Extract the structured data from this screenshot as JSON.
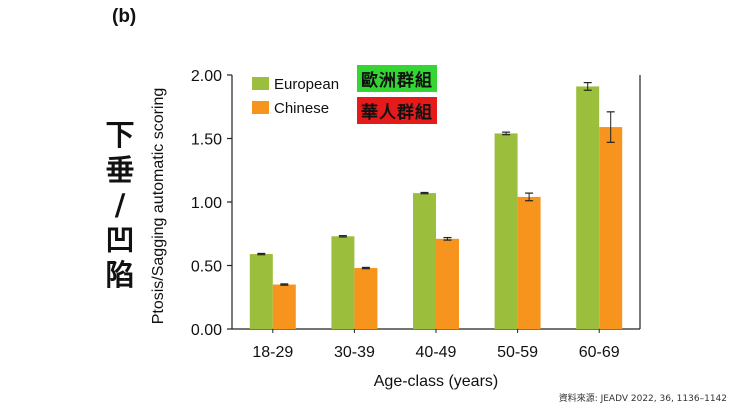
{
  "panel_label": "(b)",
  "vertical_label": [
    "下",
    "垂",
    "/",
    "凹",
    "陷"
  ],
  "legend_tags": {
    "european": {
      "text": "歐洲群組",
      "color": "#33d633"
    },
    "chinese": {
      "text": "華人群組",
      "color": "#e51b1b"
    }
  },
  "source": "資料來源: JEADV 2022, 36, 1136–1142",
  "chart_data": {
    "type": "bar",
    "title": "",
    "xlabel": "Age-class (years)",
    "ylabel": "Ptosis/Sagging automatic scoring",
    "categories": [
      "18-29",
      "30-39",
      "40-49",
      "50-59",
      "60-69"
    ],
    "ylim": [
      0,
      2.0
    ],
    "yticks": [
      "0.00",
      "0.50",
      "1.00",
      "1.50",
      "2.00"
    ],
    "legend_position": "top-left",
    "series": [
      {
        "name": "European",
        "color": "#9bbe3c",
        "values": [
          0.59,
          0.73,
          1.07,
          1.54,
          1.91
        ],
        "errors": [
          0.005,
          0.005,
          0.005,
          0.01,
          0.03
        ]
      },
      {
        "name": "Chinese",
        "color": "#f7941d",
        "values": [
          0.35,
          0.48,
          0.71,
          1.04,
          1.59
        ],
        "errors": [
          0.005,
          0.005,
          0.01,
          0.03,
          0.12
        ]
      }
    ]
  }
}
